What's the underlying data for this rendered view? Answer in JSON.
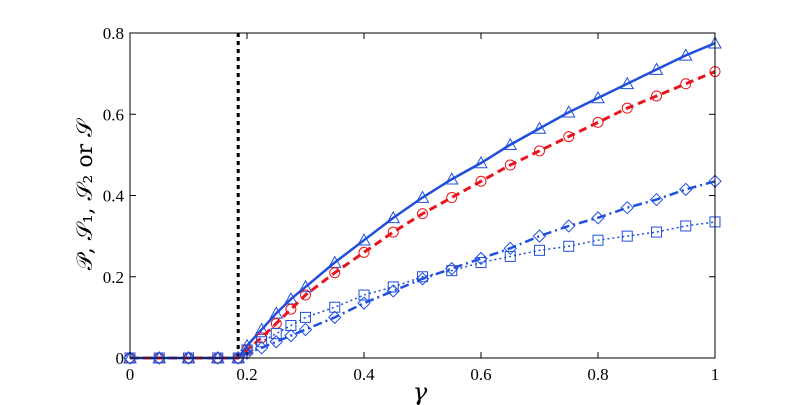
{
  "chart_data": {
    "type": "line",
    "xlabel": "γ",
    "ylabel": "𝒫, 𝒮₁, 𝒮₂ or 𝒮",
    "xlim": [
      0,
      1
    ],
    "ylim": [
      0,
      0.8
    ],
    "x_ticks": [
      "0",
      "0.2",
      "0.4",
      "0.6",
      "0.8",
      "1"
    ],
    "y_ticks": [
      "0",
      "0.2",
      "0.4",
      "0.6",
      "0.8"
    ],
    "grid": false,
    "vline": {
      "x": 0.185,
      "color": "#000000",
      "style": "dotted"
    },
    "series": [
      {
        "color": "#1f4fdc",
        "line_style": "solid",
        "marker": "triangle",
        "x": [
          0,
          0.05,
          0.1,
          0.15,
          0.185,
          0.2,
          0.225,
          0.25,
          0.275,
          0.3,
          0.35,
          0.4,
          0.45,
          0.5,
          0.55,
          0.6,
          0.65,
          0.7,
          0.75,
          0.8,
          0.85,
          0.9,
          0.95,
          1.0
        ],
        "y": [
          0,
          0,
          0,
          0,
          0,
          0.03,
          0.07,
          0.11,
          0.145,
          0.175,
          0.235,
          0.29,
          0.345,
          0.395,
          0.44,
          0.48,
          0.525,
          0.565,
          0.605,
          0.64,
          0.675,
          0.71,
          0.745,
          0.775
        ]
      },
      {
        "color": "#e8141c",
        "line_style": "dashed",
        "marker": "circle",
        "x": [
          0,
          0.05,
          0.1,
          0.15,
          0.185,
          0.2,
          0.225,
          0.25,
          0.275,
          0.3,
          0.35,
          0.4,
          0.45,
          0.5,
          0.55,
          0.6,
          0.65,
          0.7,
          0.75,
          0.8,
          0.85,
          0.9,
          0.95,
          1.0
        ],
        "y": [
          0,
          0,
          0,
          0,
          0,
          0.02,
          0.05,
          0.085,
          0.12,
          0.155,
          0.21,
          0.26,
          0.31,
          0.355,
          0.395,
          0.435,
          0.475,
          0.51,
          0.545,
          0.58,
          0.615,
          0.645,
          0.675,
          0.705
        ]
      },
      {
        "color": "#1f4fdc",
        "line_style": "dashdot",
        "marker": "diamond",
        "x": [
          0,
          0.05,
          0.1,
          0.15,
          0.185,
          0.2,
          0.225,
          0.25,
          0.275,
          0.3,
          0.35,
          0.4,
          0.45,
          0.5,
          0.55,
          0.6,
          0.65,
          0.7,
          0.75,
          0.8,
          0.85,
          0.9,
          0.95,
          1.0
        ],
        "y": [
          0,
          0,
          0,
          0,
          0,
          0.012,
          0.025,
          0.04,
          0.055,
          0.07,
          0.1,
          0.135,
          0.165,
          0.195,
          0.22,
          0.245,
          0.27,
          0.3,
          0.325,
          0.345,
          0.37,
          0.39,
          0.415,
          0.435
        ]
      },
      {
        "color": "#1f4fdc",
        "line_style": "dotted",
        "marker": "square",
        "x": [
          0,
          0.05,
          0.1,
          0.15,
          0.185,
          0.2,
          0.225,
          0.25,
          0.275,
          0.3,
          0.35,
          0.4,
          0.45,
          0.5,
          0.55,
          0.6,
          0.65,
          0.7,
          0.75,
          0.8,
          0.85,
          0.9,
          0.95,
          1.0
        ],
        "y": [
          0,
          0,
          0,
          0,
          0,
          0.02,
          0.04,
          0.06,
          0.08,
          0.1,
          0.125,
          0.155,
          0.175,
          0.2,
          0.215,
          0.235,
          0.25,
          0.265,
          0.275,
          0.29,
          0.3,
          0.31,
          0.325,
          0.335
        ]
      }
    ]
  }
}
